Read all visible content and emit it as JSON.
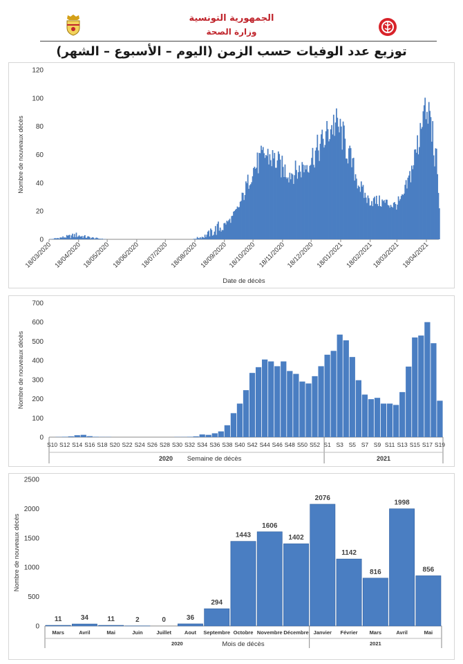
{
  "header": {
    "republic": "الجمهورية التونسية",
    "ministry": "وزارة الصحة",
    "title": "توزيع عدد الوفيات حسب الزمن (اليوم – الأسبوع – الشهر)"
  },
  "colors": {
    "bar": "#4a7ec2",
    "bar_edge": "#2f5f9e",
    "header_red": "#c0262d"
  },
  "chart_data": [
    {
      "type": "bar",
      "ylabel": "Nombre de nouveaux décès",
      "xlabel": "Date de décès",
      "ylim": [
        0,
        120
      ],
      "yticks": [
        0,
        20,
        40,
        60,
        80,
        100,
        120
      ],
      "tick_labels": [
        "18/03/2020",
        "18/04/2020",
        "18/05/2020",
        "18/06/2020",
        "18/07/2020",
        "18/08/2020",
        "18/09/2020",
        "18/10/2020",
        "18/11/2020",
        "18/12/2020",
        "18/01/2021",
        "18/02/2021",
        "18/03/2021",
        "18/04/2021"
      ],
      "trend_points": [
        [
          0,
          0
        ],
        [
          10,
          1
        ],
        [
          20,
          2
        ],
        [
          28,
          3
        ],
        [
          35,
          2
        ],
        [
          45,
          1
        ],
        [
          60,
          0
        ],
        [
          100,
          0
        ],
        [
          130,
          0
        ],
        [
          150,
          0
        ],
        [
          155,
          1
        ],
        [
          162,
          2
        ],
        [
          170,
          5
        ],
        [
          180,
          9
        ],
        [
          190,
          14
        ],
        [
          198,
          22
        ],
        [
          205,
          34
        ],
        [
          212,
          48
        ],
        [
          220,
          55
        ],
        [
          226,
          60
        ],
        [
          232,
          58
        ],
        [
          238,
          55
        ],
        [
          245,
          50
        ],
        [
          252,
          47
        ],
        [
          260,
          48
        ],
        [
          268,
          52
        ],
        [
          275,
          58
        ],
        [
          282,
          64
        ],
        [
          288,
          70
        ],
        [
          294,
          78
        ],
        [
          298,
          82
        ],
        [
          302,
          80
        ],
        [
          307,
          74
        ],
        [
          312,
          64
        ],
        [
          318,
          52
        ],
        [
          323,
          42
        ],
        [
          328,
          34
        ],
        [
          334,
          28
        ],
        [
          342,
          27
        ],
        [
          352,
          26
        ],
        [
          362,
          24
        ],
        [
          370,
          28
        ],
        [
          377,
          42
        ],
        [
          382,
          55
        ],
        [
          386,
          66
        ],
        [
          390,
          78
        ],
        [
          393,
          85
        ],
        [
          397,
          83
        ],
        [
          400,
          75
        ],
        [
          403,
          64
        ],
        [
          406,
          55
        ],
        [
          408,
          35
        ],
        [
          409,
          20
        ]
      ]
    },
    {
      "type": "bar",
      "ylabel": "Nombre de nouveaux décès",
      "xlabel": "Semaine de décès",
      "ylim": [
        0,
        700
      ],
      "yticks": [
        0,
        100,
        200,
        300,
        400,
        500,
        600,
        700
      ],
      "categories": [
        "S10",
        "S11",
        "S12",
        "S13",
        "S14",
        "S15",
        "S16",
        "S17",
        "S18",
        "S19",
        "S20",
        "S21",
        "S22",
        "S23",
        "S24",
        "S25",
        "S26",
        "S27",
        "S28",
        "S29",
        "S30",
        "S31",
        "S32",
        "S33",
        "S34",
        "S35",
        "S36",
        "S37",
        "S38",
        "S39",
        "S40",
        "S41",
        "S42",
        "S43",
        "S44",
        "S45",
        "S46",
        "S47",
        "S48",
        "S49",
        "S50",
        "S51",
        "S52",
        "S53",
        "S1",
        "S2",
        "S3",
        "S4",
        "S5",
        "S6",
        "S7",
        "S8",
        "S9",
        "S10",
        "S11",
        "S12",
        "S13",
        "S14",
        "S15",
        "S16",
        "S17",
        "S18",
        "S19"
      ],
      "values": [
        0,
        1,
        2,
        4,
        10,
        12,
        5,
        2,
        1,
        1,
        0,
        0,
        0,
        0,
        0,
        0,
        0,
        0,
        0,
        0,
        1,
        1,
        2,
        4,
        14,
        12,
        20,
        30,
        62,
        125,
        175,
        245,
        335,
        365,
        405,
        395,
        370,
        395,
        345,
        330,
        290,
        280,
        318,
        370,
        430,
        450,
        535,
        505,
        418,
        297,
        222,
        198,
        205,
        175,
        175,
        168,
        235,
        368,
        520,
        530,
        600,
        490,
        190
      ],
      "tick_labels": [
        "S10",
        "S12",
        "S14",
        "S16",
        "S18",
        "S20",
        "S22",
        "S24",
        "S26",
        "S28",
        "S30",
        "S32",
        "S34",
        "S36",
        "S38",
        "S40",
        "S42",
        "S44",
        "S46",
        "S48",
        "S50",
        "S52",
        "S1",
        "S3",
        "S5",
        "S7",
        "S9",
        "S11",
        "S13",
        "S15",
        "S17",
        "S19"
      ],
      "year_labels": [
        "2020",
        "2021"
      ]
    },
    {
      "type": "bar",
      "ylabel": "Nombre de nouveaux décès",
      "xlabel": "Mois de décès",
      "ylim": [
        0,
        2500
      ],
      "yticks": [
        0,
        500,
        1000,
        1500,
        2000,
        2500
      ],
      "categories": [
        "Mars",
        "Avril",
        "Mai",
        "Juin",
        "Juillet",
        "Aout",
        "Septembre",
        "Octobre",
        "Novembre",
        "Décembre",
        "Janvier",
        "Février",
        "Mars",
        "Avril",
        "Mai"
      ],
      "values": [
        11,
        34,
        11,
        2,
        0,
        36,
        294,
        1443,
        1606,
        1402,
        2076,
        1142,
        816,
        1998,
        856
      ],
      "data_labels": [
        "11",
        "34",
        "11",
        "2",
        "0",
        "36",
        "294",
        "1443",
        "1606",
        "1402",
        "2076",
        "1142",
        "816",
        "1998",
        "856"
      ],
      "year_labels": [
        "2020",
        "2021"
      ]
    }
  ]
}
